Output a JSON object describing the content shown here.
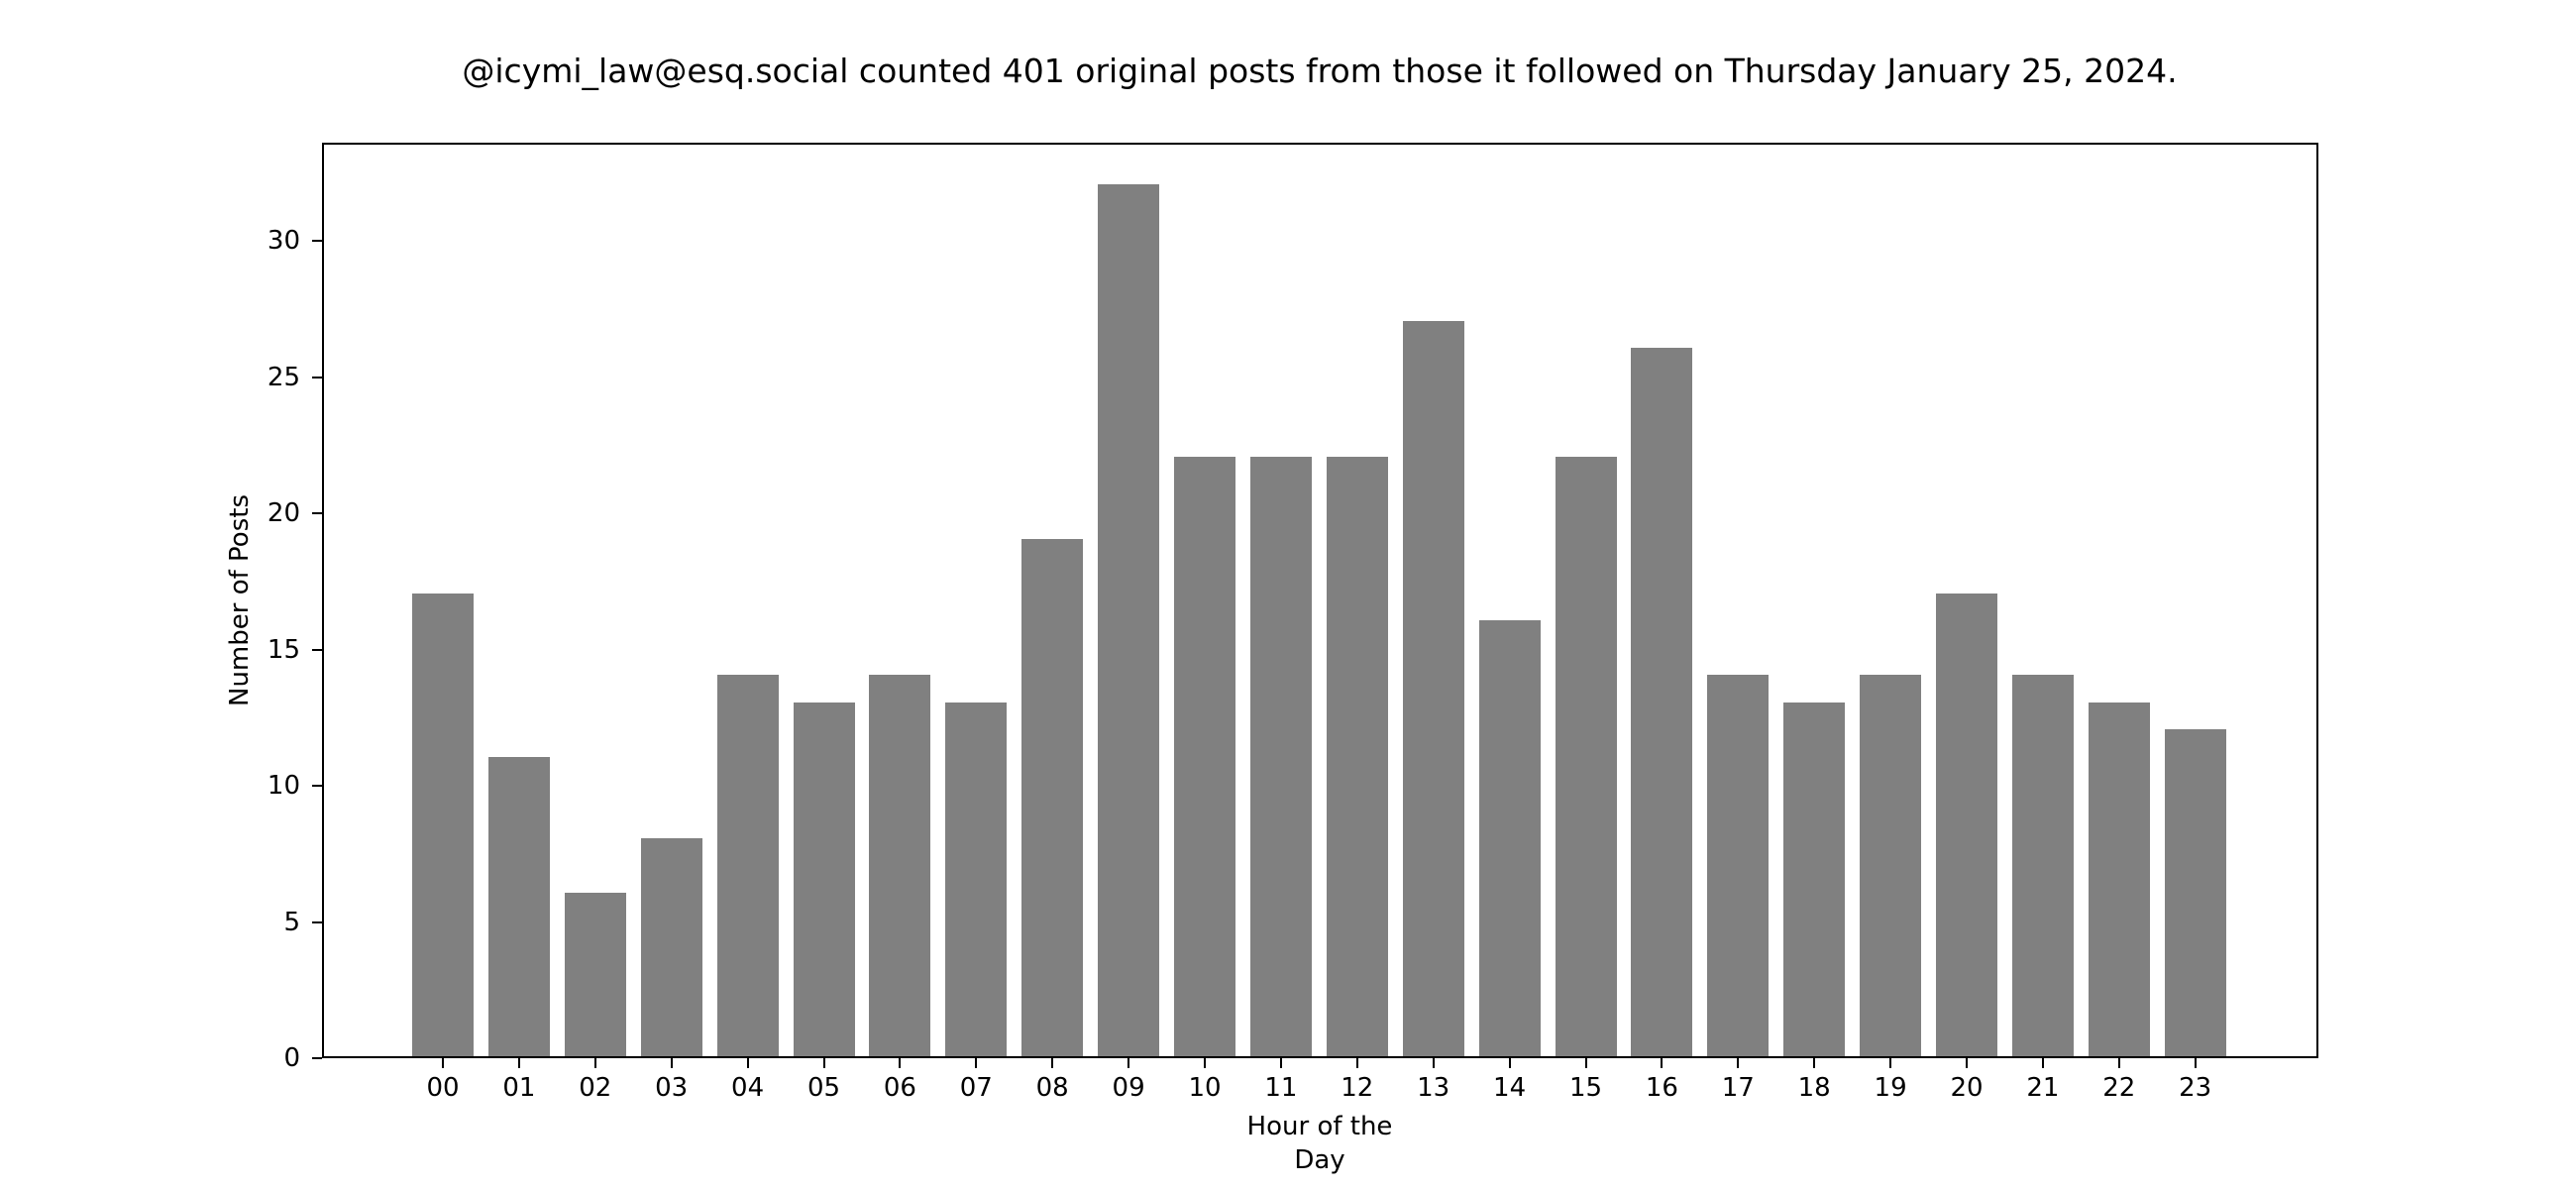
{
  "chart_data": {
    "type": "bar",
    "title": "@icymi_law@esq.social counted 401 original posts from those it followed on Thursday January 25, 2024.",
    "xlabel": "Hour of the Day",
    "ylabel": "Number of Posts",
    "categories": [
      "00",
      "01",
      "02",
      "03",
      "04",
      "05",
      "06",
      "07",
      "08",
      "09",
      "10",
      "11",
      "12",
      "13",
      "14",
      "15",
      "16",
      "17",
      "18",
      "19",
      "20",
      "21",
      "22",
      "23"
    ],
    "values": [
      17,
      11,
      6,
      8,
      14,
      13,
      14,
      13,
      19,
      32,
      22,
      22,
      22,
      27,
      16,
      22,
      26,
      14,
      13,
      14,
      17,
      14,
      13,
      12
    ],
    "yticks": [
      "0",
      "5",
      "10",
      "15",
      "20",
      "25",
      "30"
    ],
    "ylim": [
      0,
      33.6
    ],
    "grid": false,
    "legend": null,
    "bar_color": "#808080",
    "total_posts": 401
  }
}
